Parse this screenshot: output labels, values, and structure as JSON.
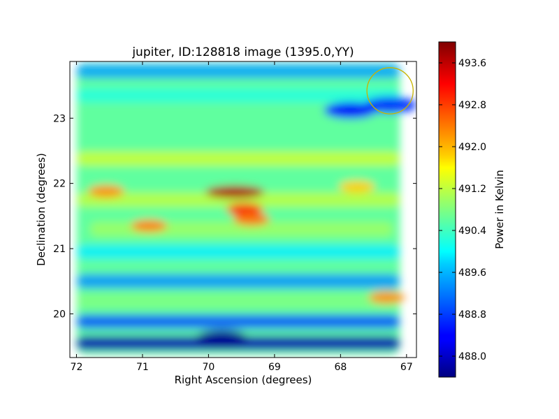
{
  "chart_data": {
    "type": "heatmap",
    "title": "jupiter, ID:128818 image (1395.0,YY)",
    "xlabel": "Right Ascension (degrees)",
    "ylabel": "Declination (degrees)",
    "xlim": [
      72.1,
      66.85
    ],
    "ylim": [
      19.33,
      23.87
    ],
    "x_ticks": [
      72,
      71,
      70,
      69,
      68,
      67
    ],
    "x_tick_labels": [
      "72",
      "71",
      "70",
      "69",
      "68",
      "67"
    ],
    "y_ticks": [
      20,
      21,
      22,
      23
    ],
    "y_tick_labels": [
      "20",
      "21",
      "22",
      "23"
    ],
    "colorbar": {
      "label": "Power in Kelvin",
      "range": [
        487.6,
        494.0
      ],
      "ticks": [
        488.0,
        488.8,
        489.6,
        490.4,
        491.2,
        492.0,
        492.8,
        493.6
      ],
      "tick_labels": [
        "488.0",
        "488.8",
        "489.6",
        "490.4",
        "491.2",
        "492.0",
        "492.8",
        "493.6"
      ],
      "colormap": "jet"
    },
    "background_level": 490.6,
    "features": [
      {
        "kind": "band",
        "dec": 22.38,
        "ra_range": [
          72.0,
          67.1
        ],
        "value": 491.3
      },
      {
        "kind": "band",
        "dec": 21.75,
        "ra_range": [
          72.0,
          67.1
        ],
        "value": 491.2
      },
      {
        "kind": "band",
        "dec": 21.3,
        "ra_range": [
          71.8,
          67.2
        ],
        "value": 491.0
      },
      {
        "kind": "band",
        "dec": 20.95,
        "ra_range": [
          72.0,
          67.1
        ],
        "value": 489.9
      },
      {
        "kind": "band",
        "dec": 20.5,
        "ra_range": [
          72.0,
          67.1
        ],
        "value": 489.3
      },
      {
        "kind": "band",
        "dec": 20.2,
        "ra_range": [
          72.0,
          67.1
        ],
        "value": 490.8
      },
      {
        "kind": "band",
        "dec": 19.88,
        "ra_range": [
          72.0,
          67.1
        ],
        "value": 488.9
      },
      {
        "kind": "band",
        "dec": 19.55,
        "ra_range": [
          72.0,
          67.1
        ],
        "value": 487.9
      },
      {
        "kind": "band",
        "dec": 23.35,
        "ra_range": [
          72.0,
          67.1
        ],
        "value": 490.2
      },
      {
        "kind": "band",
        "dec": 23.72,
        "ra_range": [
          72.0,
          67.1
        ],
        "value": 489.4
      },
      {
        "kind": "peak",
        "ra": 69.6,
        "dec": 21.87,
        "value": 493.7
      },
      {
        "kind": "peak",
        "ra": 69.45,
        "dec": 21.6,
        "value": 493.0
      },
      {
        "kind": "peak",
        "ra": 69.35,
        "dec": 21.45,
        "value": 492.5
      },
      {
        "kind": "peak",
        "ra": 70.9,
        "dec": 21.35,
        "value": 492.4
      },
      {
        "kind": "peak",
        "ra": 71.55,
        "dec": 21.88,
        "value": 492.3
      },
      {
        "kind": "peak",
        "ra": 67.3,
        "dec": 20.25,
        "value": 492.3
      },
      {
        "kind": "peak",
        "ra": 67.75,
        "dec": 21.95,
        "value": 491.9
      },
      {
        "kind": "trough",
        "ra": 67.85,
        "dec": 23.12,
        "value": 488.4
      },
      {
        "kind": "trough",
        "ra": 67.25,
        "dec": 23.2,
        "value": 488.7
      },
      {
        "kind": "trough",
        "ra": 69.8,
        "dec": 19.62,
        "value": 487.7
      }
    ],
    "circle_marker": {
      "ra": 67.25,
      "dec": 23.42,
      "radius_deg": 0.35,
      "color": "#c8b400"
    }
  }
}
